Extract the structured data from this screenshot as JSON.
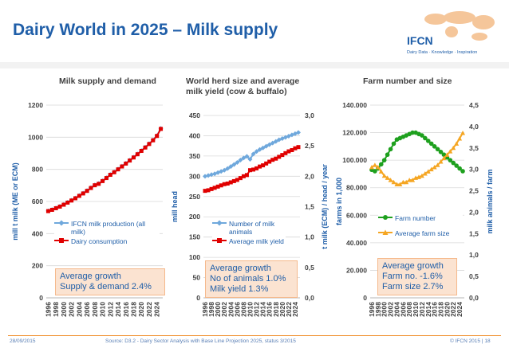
{
  "slide": {
    "title": "Dairy World in 2025 – Milk supply",
    "logo_text": "IFCN",
    "logo_tagline": "Dairy Data · Knowledge · Inspiration",
    "footer_date": "28/09/2015",
    "footer_source": "Source: D3.2 - Dairy Sector Analysis with Base Line Projection 2025, status 3/2015",
    "footer_page": "© IFCN  2015 | 18",
    "colors": {
      "title": "#1f5ea8",
      "accent": "#f08a24",
      "note_bg": "#fbe3d1"
    }
  },
  "chart_data": [
    {
      "type": "line",
      "title": "Milk supply and demand",
      "ylabel": "mill t milk (ME or ECM)",
      "ylim": [
        0,
        1200
      ],
      "yticks": [
        "0",
        "200",
        "400",
        "600",
        "800",
        "1000",
        "1200"
      ],
      "x": [
        1996,
        1997,
        1998,
        1999,
        2000,
        2001,
        2002,
        2003,
        2004,
        2005,
        2006,
        2007,
        2008,
        2009,
        2010,
        2011,
        2012,
        2013,
        2014,
        2015,
        2016,
        2017,
        2018,
        2019,
        2020,
        2021,
        2022,
        2023,
        2024,
        2025
      ],
      "xticks": [
        "1996",
        "1998",
        "2000",
        "2002",
        "2004",
        "2006",
        "2008",
        "2010",
        "2012",
        "2014",
        "2016",
        "2018",
        "2020",
        "2022",
        "2024"
      ],
      "series": [
        {
          "name": "IFCN milk production (all milk)",
          "color": "#6fa8dc",
          "marker": "diamond",
          "values": [
            542,
            550,
            560,
            570,
            582,
            595,
            608,
            622,
            637,
            652,
            668,
            686,
            703,
            712,
            729,
            748,
            768,
            784,
            802,
            820,
            838,
            857,
            876,
            896,
            917,
            938,
            960,
            983,
            1010,
            1055
          ]
        },
        {
          "name": "Dairy consumption",
          "color": "#e00000",
          "marker": "square",
          "values": [
            540,
            548,
            558,
            568,
            580,
            593,
            606,
            620,
            635,
            650,
            666,
            684,
            701,
            710,
            727,
            746,
            766,
            782,
            800,
            818,
            836,
            855,
            874,
            894,
            915,
            936,
            958,
            981,
            1008,
            1052
          ]
        }
      ],
      "note": [
        "Average growth",
        "Supply & demand 2.4%"
      ]
    },
    {
      "type": "line",
      "title": "World herd size and average milk yield (cow & buffalo)",
      "ylabel": "mill head",
      "y2label": "t milk (ECM) / head / year",
      "ylim": [
        0,
        450
      ],
      "y2lim": [
        0,
        3
      ],
      "yticks": [
        "0",
        "50",
        "100",
        "150",
        "200",
        "250",
        "300",
        "350",
        "400",
        "450"
      ],
      "y2ticks": [
        "0,0",
        "0,5",
        "1,0",
        "1,5",
        "2,0",
        "2,5",
        "3,0"
      ],
      "x": [
        1996,
        1997,
        1998,
        1999,
        2000,
        2001,
        2002,
        2003,
        2004,
        2005,
        2006,
        2007,
        2008,
        2009,
        2010,
        2011,
        2012,
        2013,
        2014,
        2015,
        2016,
        2017,
        2018,
        2019,
        2020,
        2021,
        2022,
        2023,
        2024,
        2025
      ],
      "xticks": [
        "1996",
        "1998",
        "2000",
        "2002",
        "2004",
        "2006",
        "2008",
        "2010",
        "2012",
        "2014",
        "2016",
        "2018",
        "2020",
        "2022",
        "2024"
      ],
      "series": [
        {
          "name": "Number of milk animals",
          "color": "#6fa8dc",
          "marker": "diamond",
          "axis": "left",
          "values": [
            300,
            302,
            304,
            306,
            309,
            312,
            315,
            319,
            324,
            329,
            334,
            340,
            345,
            349,
            342,
            355,
            361,
            366,
            370,
            374,
            378,
            382,
            386,
            390,
            393,
            396,
            399,
            402,
            405,
            408
          ]
        },
        {
          "name": "Average milk yield",
          "color": "#e00000",
          "marker": "square",
          "axis": "right",
          "values": [
            1.76,
            1.77,
            1.79,
            1.81,
            1.83,
            1.85,
            1.87,
            1.88,
            1.9,
            1.92,
            1.94,
            1.97,
            2.0,
            2.02,
            2.1,
            2.11,
            2.13,
            2.16,
            2.18,
            2.21,
            2.24,
            2.27,
            2.29,
            2.32,
            2.35,
            2.38,
            2.41,
            2.43,
            2.46,
            2.48
          ]
        }
      ],
      "note": [
        "Average growth",
        "No of animals 1.0%",
        "Milk yield 1.3%"
      ]
    },
    {
      "type": "line",
      "title": "Farm number and size",
      "ylabel": "farms in 1,000",
      "y2label": "milk animals / farm",
      "ylim": [
        0,
        140000
      ],
      "y2lim": [
        0,
        4.5
      ],
      "yticks": [
        "0",
        "20.000",
        "40.000",
        "60.000",
        "80.000",
        "100.000",
        "120.000",
        "140.000"
      ],
      "y2ticks": [
        "0,0",
        "0,5",
        "1,0",
        "1,5",
        "2,0",
        "2,5",
        "3,0",
        "3,5",
        "4,0",
        "4,5"
      ],
      "x": [
        1996,
        1997,
        1998,
        1999,
        2000,
        2001,
        2002,
        2003,
        2004,
        2005,
        2006,
        2007,
        2008,
        2009,
        2010,
        2011,
        2012,
        2013,
        2014,
        2015,
        2016,
        2017,
        2018,
        2019,
        2020,
        2021,
        2022,
        2023,
        2024,
        2025
      ],
      "xticks": [
        "1996",
        "1998",
        "2000",
        "2002",
        "2004",
        "2006",
        "2008",
        "2010",
        "2012",
        "2014",
        "2016",
        "2018",
        "2020",
        "2022",
        "2024"
      ],
      "series": [
        {
          "name": "Farm number",
          "color": "#1ea01e",
          "marker": "circle",
          "axis": "left",
          "values": [
            93000,
            92000,
            94000,
            97000,
            100000,
            104000,
            108000,
            112000,
            115000,
            116000,
            117000,
            118000,
            119000,
            120000,
            120000,
            119000,
            118000,
            116000,
            114000,
            112000,
            110000,
            108000,
            106000,
            104000,
            102000,
            100000,
            98000,
            96000,
            94000,
            92000
          ]
        },
        {
          "name": "Average farm size",
          "color": "#f5a623",
          "marker": "triangle",
          "axis": "right",
          "values": [
            3.05,
            3.1,
            3.05,
            2.95,
            2.85,
            2.8,
            2.75,
            2.7,
            2.65,
            2.65,
            2.7,
            2.7,
            2.75,
            2.75,
            2.8,
            2.82,
            2.85,
            2.9,
            2.95,
            3.0,
            3.05,
            3.1,
            3.18,
            3.26,
            3.34,
            3.42,
            3.5,
            3.6,
            3.72,
            3.85
          ]
        }
      ],
      "note": [
        "Average growth",
        "Farm no. -1.6%",
        "Farm size 2.7%"
      ]
    }
  ]
}
